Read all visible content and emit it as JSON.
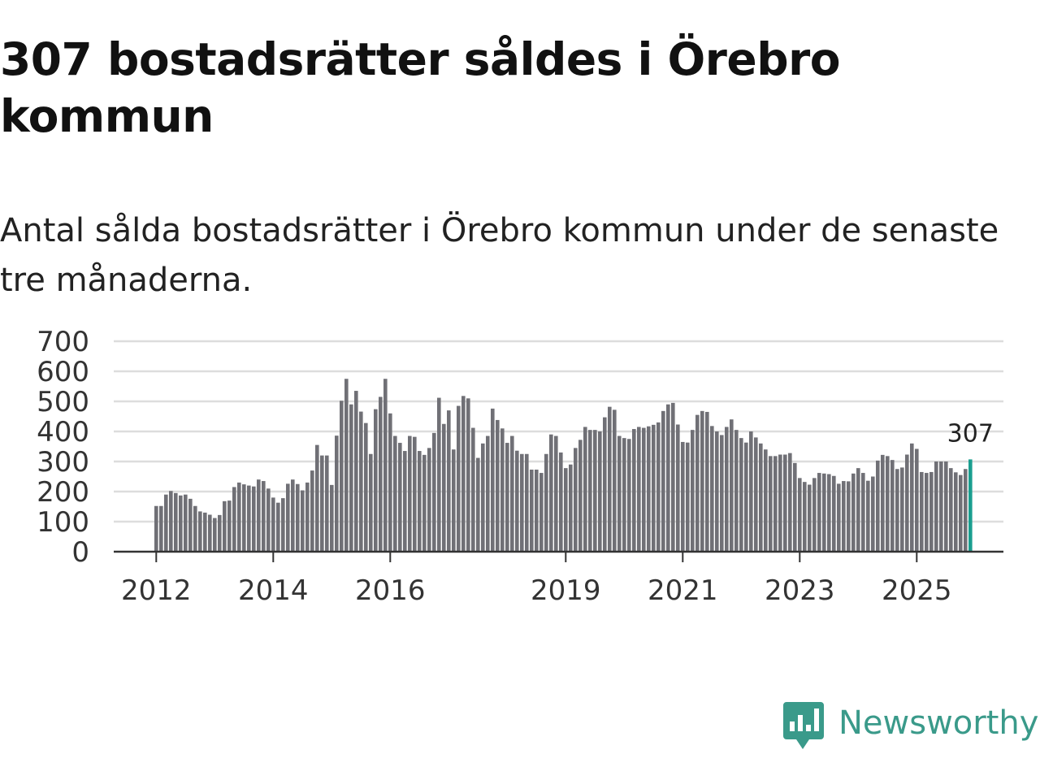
{
  "title": "307 bostadsrätter såldes i Örebro kommun",
  "subtitle": "Antal sålda bostadsrätter i Örebro kommun under de senaste tre månaderna.",
  "brand": {
    "name": "Newsworthy",
    "color": "#3a9a8a",
    "icon": "newsworthy-logo-icon"
  },
  "chart_data": {
    "type": "bar",
    "title": "307 bostadsrätter såldes i Örebro kommun",
    "subtitle": "Antal sålda bostadsrätter i Örebro kommun under de senaste tre månaderna.",
    "xlabel": "",
    "ylabel": "",
    "ylim": [
      0,
      700
    ],
    "y_ticks": [
      "0",
      "100",
      "200",
      "300",
      "400",
      "500",
      "600",
      "700"
    ],
    "x_ticks": [
      "2012",
      "2014",
      "2016",
      "2019",
      "2021",
      "2023",
      "2025"
    ],
    "grid": true,
    "legend": "none",
    "colors": {
      "bar": "#707076",
      "highlight": "#1a9e8f",
      "grid": "#dddddd",
      "axis": "#333333"
    },
    "highlight_label": "307",
    "values": [
      152,
      152,
      190,
      202,
      195,
      187,
      190,
      176,
      152,
      134,
      130,
      123,
      112,
      122,
      168,
      170,
      215,
      230,
      224,
      220,
      217,
      240,
      235,
      210,
      180,
      163,
      178,
      226,
      240,
      225,
      204,
      230,
      270,
      355,
      320,
      320,
      222,
      386,
      502,
      575,
      490,
      535,
      466,
      428,
      325,
      474,
      515,
      575,
      460,
      385,
      362,
      335,
      385,
      382,
      335,
      322,
      345,
      395,
      512,
      425,
      470,
      340,
      485,
      518,
      510,
      412,
      312,
      360,
      385,
      476,
      438,
      410,
      362,
      385,
      336,
      325,
      325,
      273,
      273,
      262,
      325,
      390,
      385,
      330,
      278,
      290,
      345,
      372,
      415,
      405,
      405,
      400,
      447,
      482,
      472,
      385,
      378,
      375,
      408,
      415,
      412,
      417,
      422,
      430,
      468,
      490,
      495,
      423,
      365,
      363,
      405,
      455,
      468,
      465,
      418,
      400,
      388,
      415,
      440,
      405,
      378,
      363,
      400,
      380,
      360,
      340,
      318,
      318,
      323,
      323,
      328,
      295,
      245,
      232,
      223,
      245,
      262,
      260,
      258,
      252,
      226,
      235,
      234,
      260,
      278,
      262,
      236,
      250,
      303,
      322,
      318,
      305,
      275,
      280,
      323,
      360,
      342,
      265,
      262,
      265,
      300,
      300,
      300,
      278,
      264,
      255,
      275,
      307
    ],
    "x_first_bar_year": 2012
  }
}
